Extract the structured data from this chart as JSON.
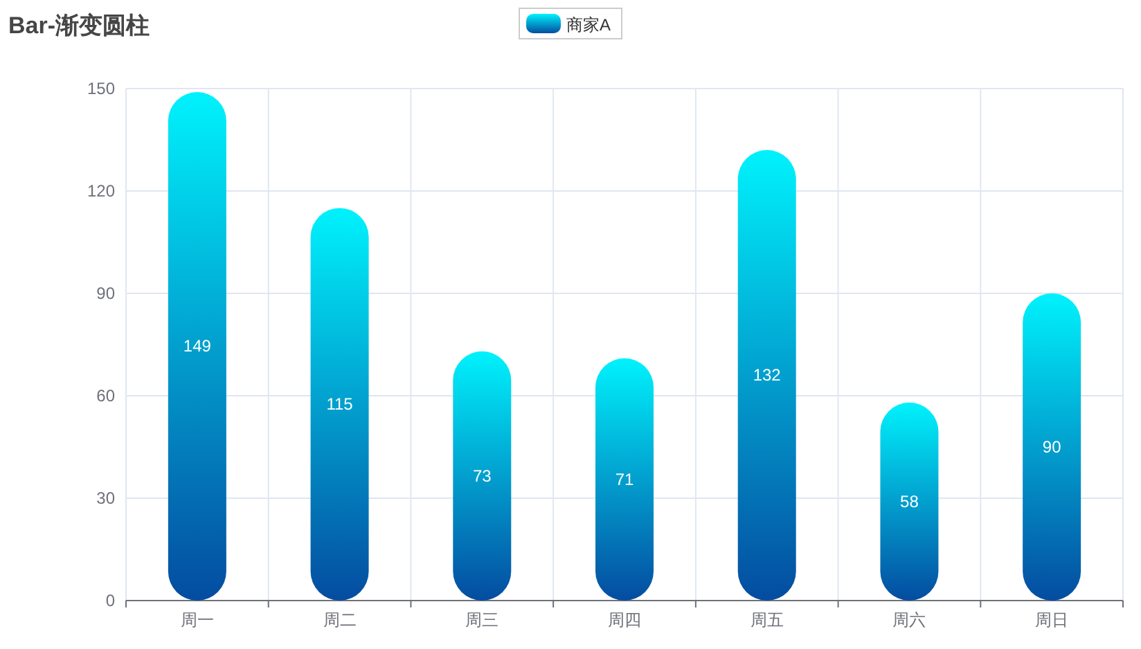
{
  "chart_data": {
    "type": "bar",
    "title": "Bar-渐变圆柱",
    "categories": [
      "周一",
      "周二",
      "周三",
      "周四",
      "周五",
      "周六",
      "周日"
    ],
    "series": [
      {
        "name": "商家A",
        "color": "#0797d2",
        "values": [
          149,
          115,
          73,
          71,
          132,
          58,
          90
        ]
      }
    ],
    "ylim": [
      0,
      150
    ],
    "yticks": [
      0,
      30,
      60,
      90,
      120,
      150
    ],
    "grid": true,
    "legend": "top",
    "data_labels": true
  }
}
